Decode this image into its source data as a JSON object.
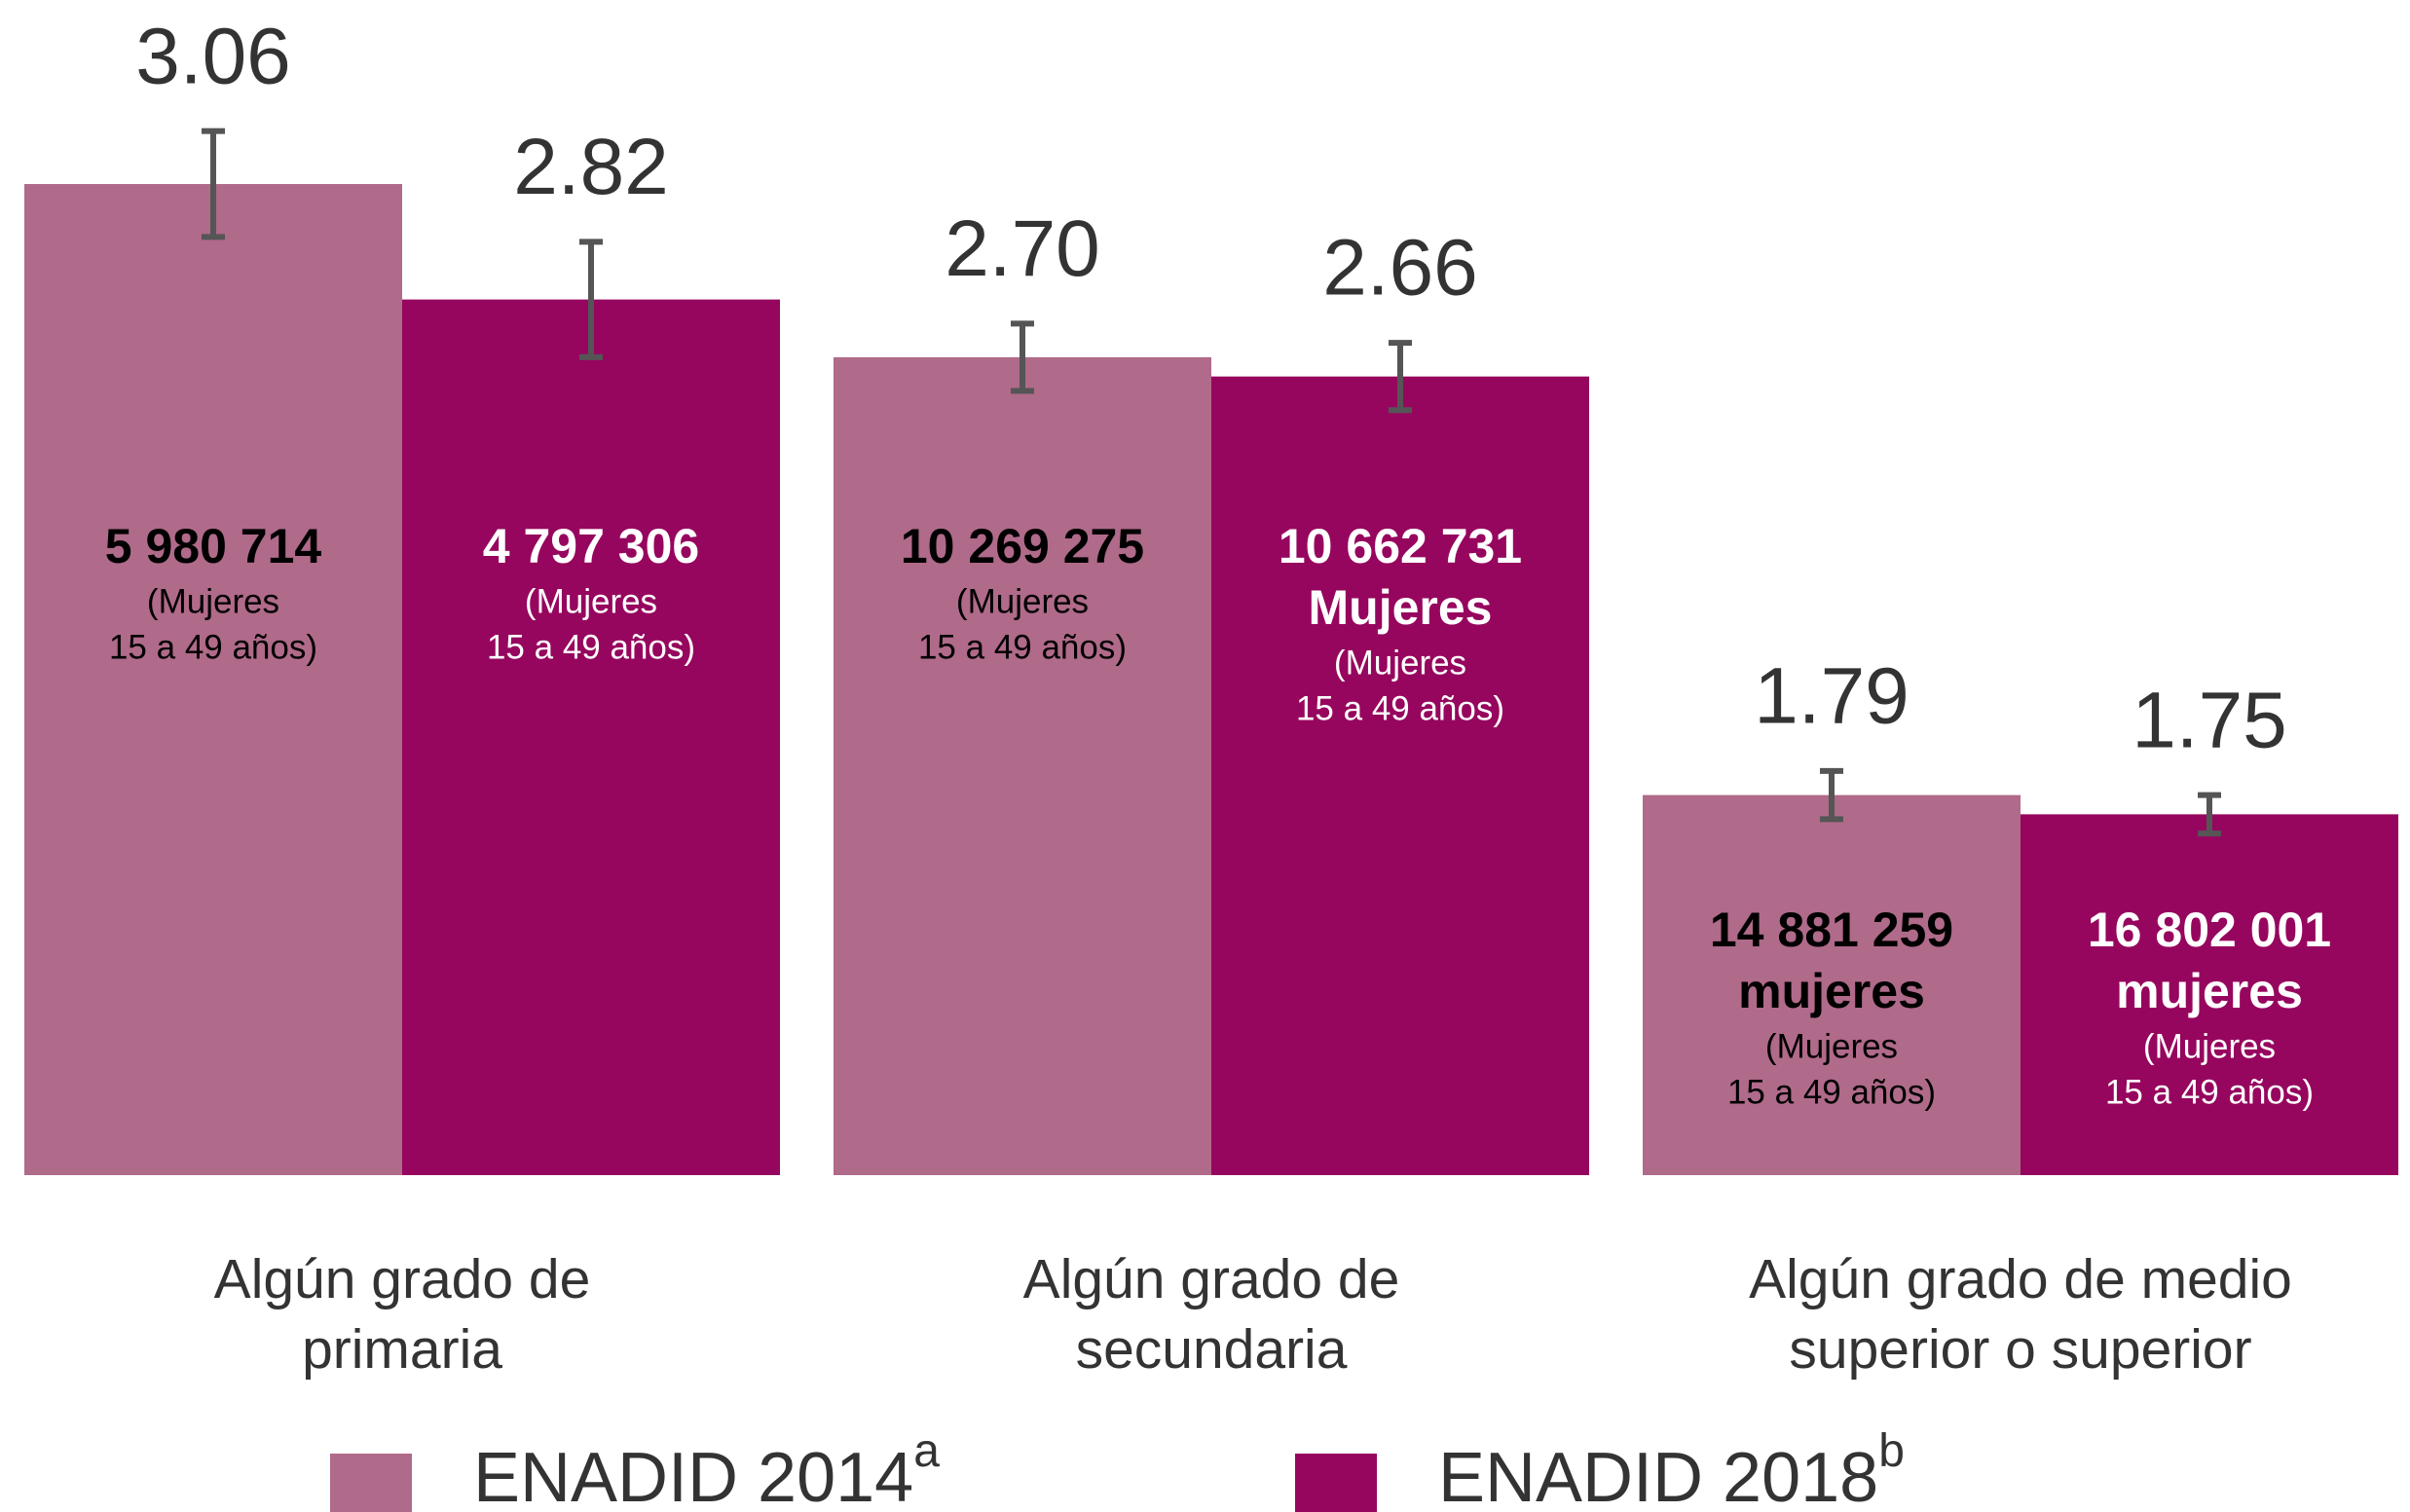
{
  "chart_data": {
    "type": "bar",
    "categories": [
      [
        "Algún grado de",
        "primaria"
      ],
      [
        "Algún grado de",
        "secundaria"
      ],
      [
        "Algún grado de medio",
        "superior o superior"
      ]
    ],
    "ylim": [
      1,
      3.4
    ],
    "series": [
      {
        "name": "ENADID 2014",
        "name_sup": "a",
        "color": "#b06a8a",
        "text_color": "#000000",
        "values": [
          3.06,
          2.7,
          1.79
        ],
        "value_labels": [
          "3.06",
          "2.70",
          "1.79"
        ],
        "errors": [
          0.11,
          0.07,
          0.05
        ],
        "bar_labels": [
          {
            "bold": [
              "5 980 714"
            ],
            "note": [
              "(Mujeres",
              "15 a 49 años)"
            ]
          },
          {
            "bold": [
              "10 269 275"
            ],
            "note": [
              "(Mujeres",
              "15 a 49 años)"
            ]
          },
          {
            "bold": [
              "14 881 259",
              "mujeres"
            ],
            "note": [
              "(Mujeres",
              "15 a 49 años)"
            ]
          }
        ]
      },
      {
        "name": "ENADID 2018",
        "name_sup": "b",
        "color": "#96065e",
        "text_color": "#ffffff",
        "values": [
          2.82,
          2.66,
          1.75
        ],
        "value_labels": [
          "2.82",
          "2.66",
          "1.75"
        ],
        "errors": [
          0.12,
          0.07,
          0.04
        ],
        "bar_labels": [
          {
            "bold": [
              "4 797 306"
            ],
            "note": [
              "(Mujeres",
              "15 a 49 años)"
            ]
          },
          {
            "bold": [
              "10 662 731",
              "Mujeres"
            ],
            "note": [
              "(Mujeres",
              "15 a 49 años)"
            ]
          },
          {
            "bold": [
              "16 802 001",
              "mujeres"
            ],
            "note": [
              "(Mujeres",
              "15 a 49 años)"
            ]
          }
        ]
      }
    ]
  }
}
